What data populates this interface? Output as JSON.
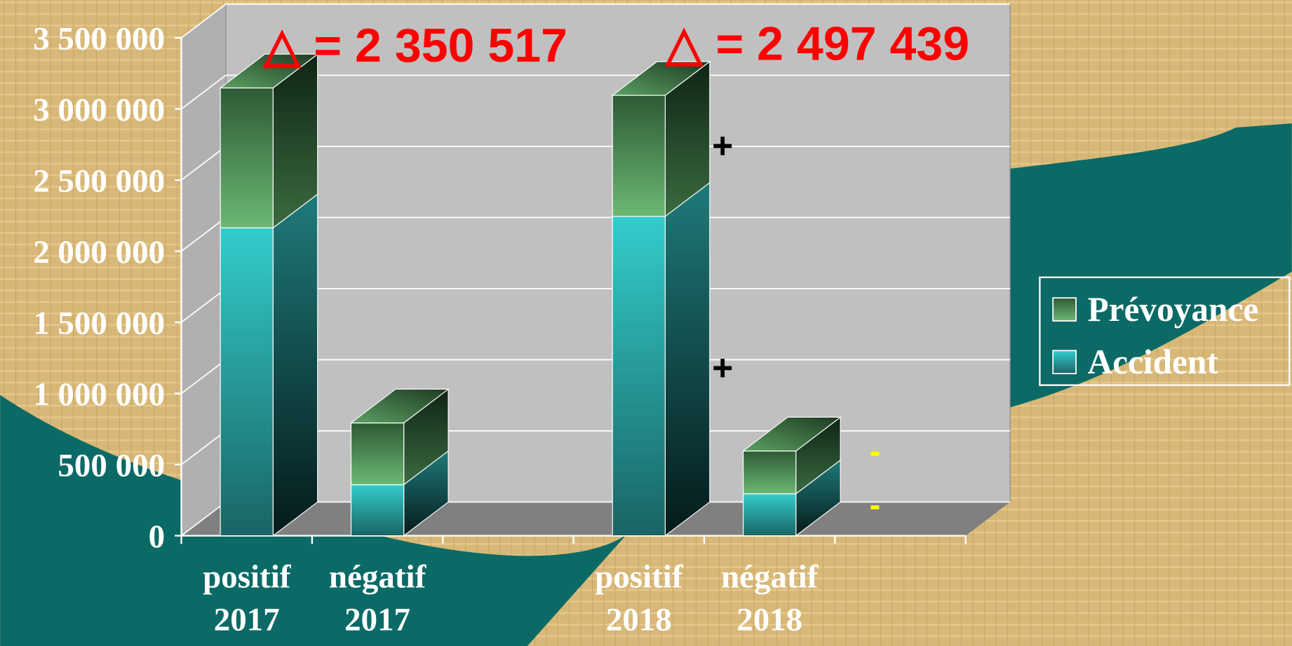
{
  "chart_data": {
    "type": "bar3d_stacked",
    "categories": [
      "positif 2017",
      "négatif 2017",
      null,
      "positif 2018",
      "négatif 2018",
      null
    ],
    "series": [
      {
        "name": "Accident",
        "color": "#33cccc",
        "values": [
          2164000,
          359000,
          null,
          2245000,
          295000,
          null
        ]
      },
      {
        "name": "Prévoyance",
        "color": "#66b36e",
        "values": [
          984000,
          434000,
          null,
          851000,
          301000,
          null
        ]
      }
    ],
    "ylim": [
      0,
      3500000
    ],
    "yticks": [
      0,
      {
        "value": 500000,
        "label": "500 000"
      },
      {
        "value": 1000000,
        "label": "1 000 000"
      },
      {
        "value": 1500000,
        "label": "1 500 000"
      },
      {
        "value": 2000000,
        "label": "2 000 000"
      },
      {
        "value": 2500000,
        "label": "2 500 000"
      },
      {
        "value": 3000000,
        "label": "3 000 000"
      },
      {
        "value": 3500000,
        "label": "3 500 000"
      }
    ],
    "grid": true,
    "legend": "right",
    "annotations": [
      "△ = 2 350 517",
      "△ = 2 497 439",
      "+",
      "+",
      "-",
      "-"
    ]
  }
}
